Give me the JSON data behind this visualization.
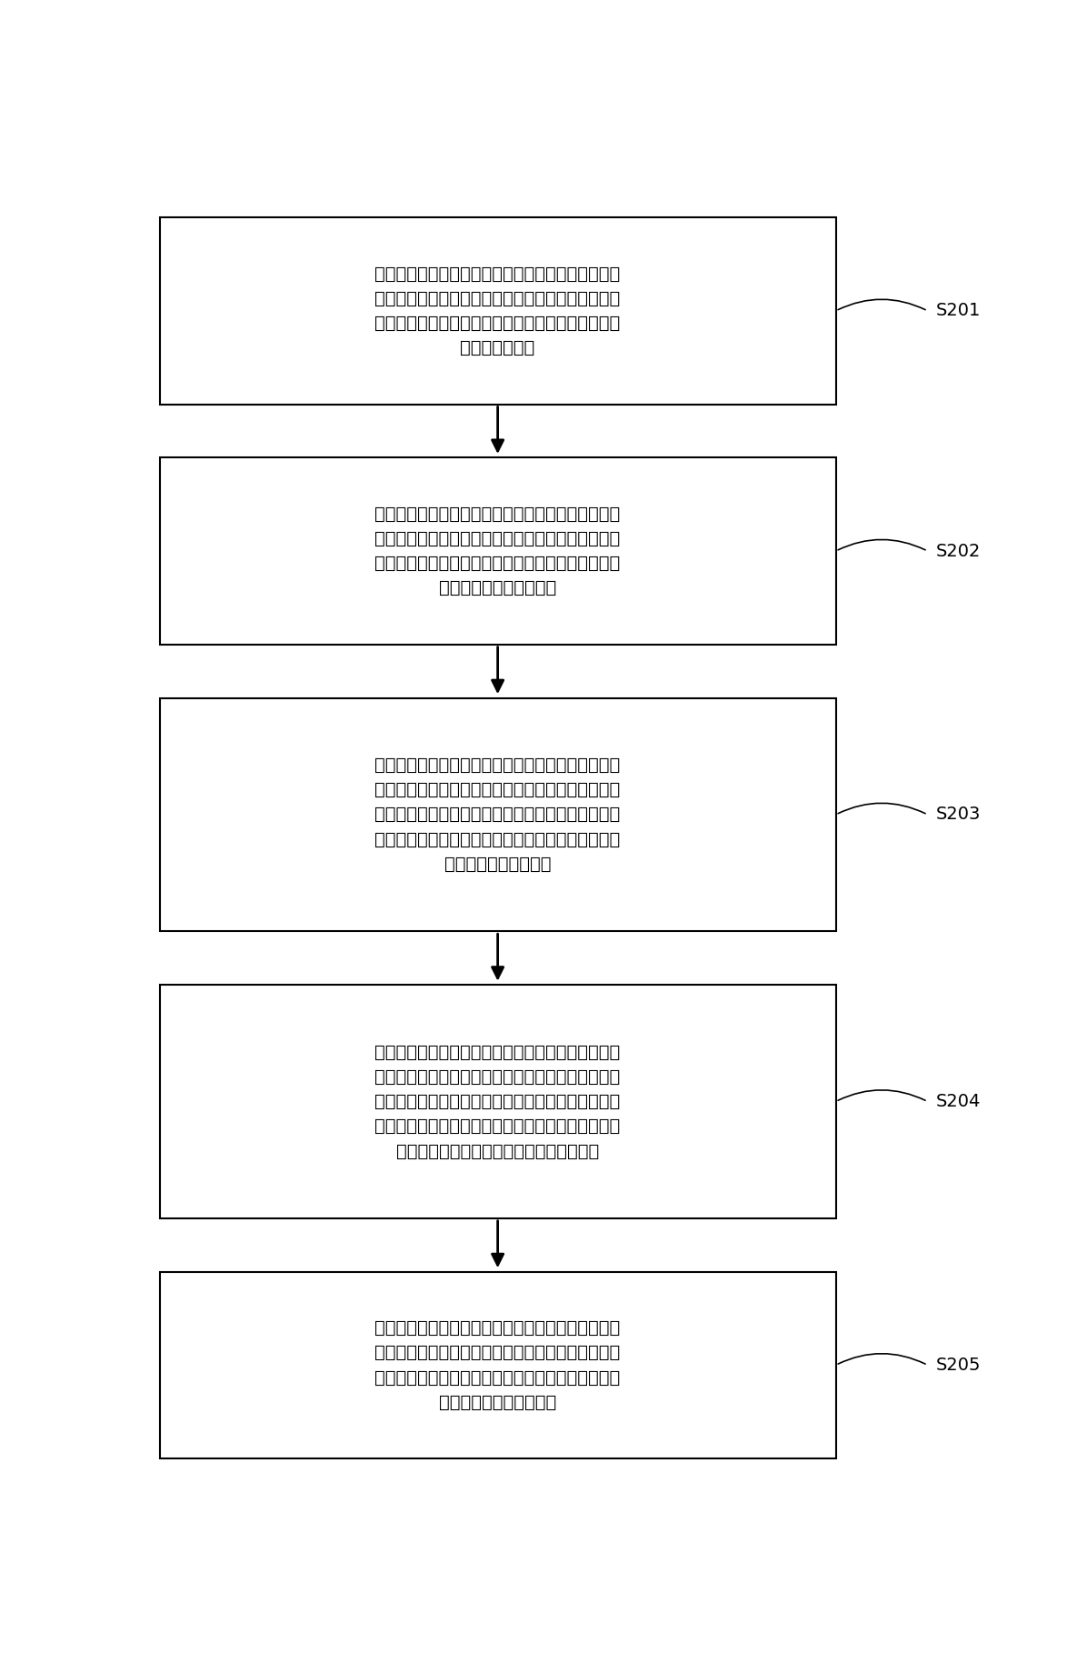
{
  "background_color": "#ffffff",
  "box_border_color": "#000000",
  "box_fill_color": "#ffffff",
  "arrow_color": "#000000",
  "label_color": "#000000",
  "steps": [
    {
      "id": "S201",
      "text": "按预设周期采集设置于待测商品上的射频标签数据，\n获得商品射频标签的信号特征数据流，信号特征数据\n流中的每个信号特征数据包括信号强度特征数据及信\n号相位特征数据",
      "label": "S201",
      "lines": 4
    },
    {
      "id": "S202",
      "text": "处理所述信号特征数据流中的信号强度特征数据，得\n到移动强度指标，当移动强度指标大于等于第一设定\n阈值，判断出该移动强度指标对应的商品射频标签为\n受到影响的商品射频标签",
      "label": "S202",
      "lines": 4
    },
    {
      "id": "S203",
      "text": "记录受到影响的商品射频标签受影响的开始时间及结\n束时间，所述开始时间为受到影响的商品射频标签的\n移动强度指标大于等于第一设定阈值的时刻，所述结\n束时间为受到影响的商品射频标签的移动强度指标小\n于第一预设阈值的时刻",
      "label": "S203",
      "lines": 5
    },
    {
      "id": "S204",
      "text": "处理所述受到影响的商品射频标签的所述信号特征数\n据流中的信号相位特征数据，得到相位变化步幅值，\n当相位变化步幅值大于第二设定阈值，判断出该信号\n相位特征对应的商品射频标签为发生移动的商品射频\n标签，该商品射频标签对应的商品发生移动",
      "label": "S204",
      "lines": 5
    },
    {
      "id": "S205",
      "text": "对除被判断出发生移动的商品射频标签外的其他受到\n影响的商品射频标签的移动强度指标进行聚类，根据\n聚类结果得出发生拨动的商品射频标签，该商品射频\n标签对应的商品发生拨动",
      "label": "S205",
      "lines": 4
    }
  ],
  "fig_width": 11.85,
  "fig_height": 18.18,
  "dpi": 100
}
